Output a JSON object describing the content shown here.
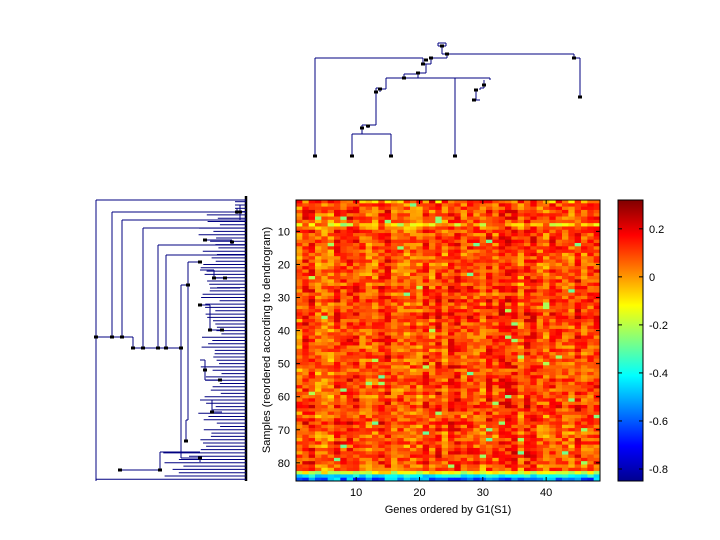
{
  "chart_data": {
    "type": "heatmap",
    "title": "",
    "xlabel": "Genes ordered by G1(S1)",
    "ylabel": "Samples (reordered according to dendrogram)",
    "n_cols": 48,
    "n_rows": 85,
    "x_ticks": [
      "10",
      "20",
      "30",
      "40"
    ],
    "x_tick_values": [
      10,
      20,
      30,
      40
    ],
    "y_ticks": [
      "10",
      "20",
      "30",
      "40",
      "50",
      "60",
      "70",
      "80"
    ],
    "y_tick_values": [
      10,
      20,
      30,
      40,
      50,
      60,
      70,
      80
    ],
    "colorbar": {
      "range": [
        -0.85,
        0.32
      ],
      "ticks": [
        "0.2",
        "0",
        "-0.2",
        "-0.4",
        "-0.6",
        "-0.8"
      ],
      "tick_values": [
        0.2,
        0,
        -0.2,
        -0.4,
        -0.6,
        -0.8
      ],
      "colormap": "jet"
    },
    "dendrograms": [
      "top-genes",
      "left-samples"
    ],
    "line_color": "#000080"
  }
}
